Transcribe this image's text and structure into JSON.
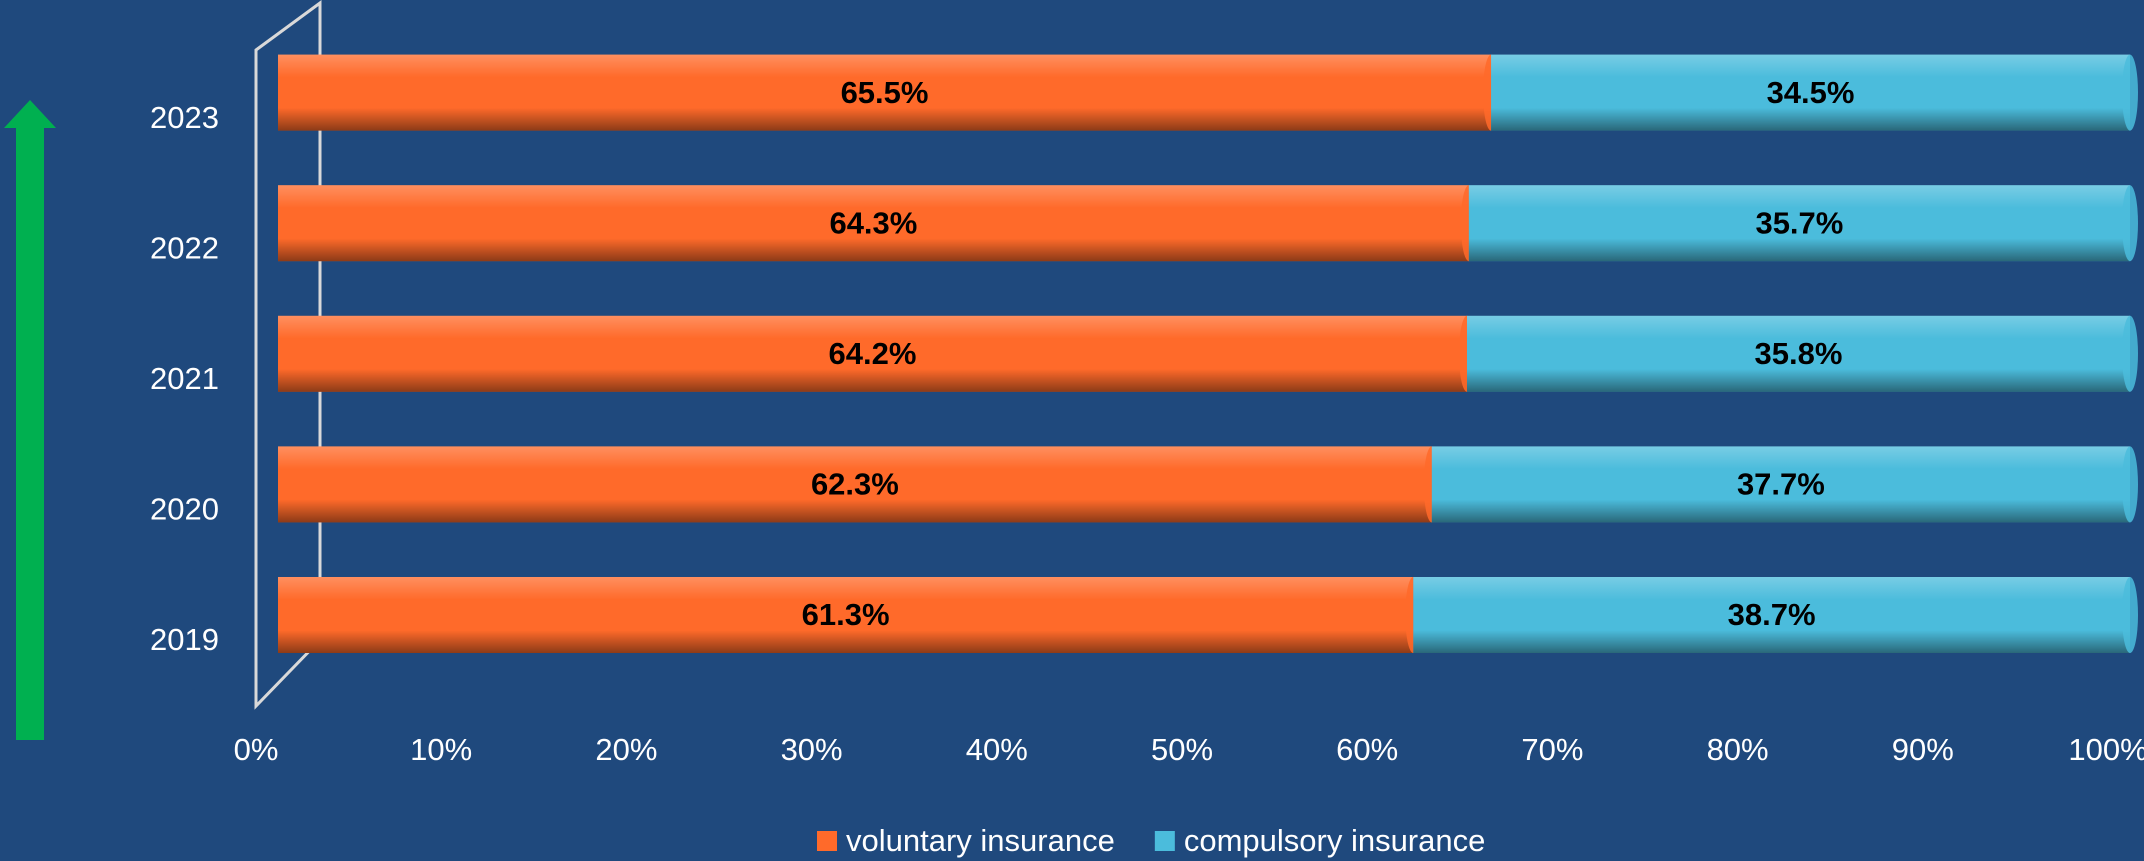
{
  "chart_data": {
    "type": "stacked_bar_horizontal",
    "categories": [
      "2019",
      "2020",
      "2021",
      "2022",
      "2023"
    ],
    "series": [
      {
        "name": "voluntary insurance",
        "color": "#ff6a2a",
        "values": [
          61.3,
          62.3,
          64.2,
          64.3,
          65.5
        ],
        "value_labels": [
          "61.3%",
          "62.3%",
          "64.2%",
          "64.3%",
          "65.5%"
        ]
      },
      {
        "name": "compulsory insurance",
        "color": "#4bbcdc",
        "values": [
          38.7,
          37.7,
          35.8,
          35.7,
          34.5
        ],
        "value_labels": [
          "38.7%",
          "37.7%",
          "35.8%",
          "35.7%",
          "34.5%"
        ]
      }
    ],
    "xlim": [
      0,
      100
    ],
    "xticks": [
      {
        "value": 0,
        "label": "0%"
      },
      {
        "value": 10,
        "label": "10%"
      },
      {
        "value": 20,
        "label": "20%"
      },
      {
        "value": 30,
        "label": "30%"
      },
      {
        "value": 40,
        "label": "40%"
      },
      {
        "value": 50,
        "label": "50%"
      },
      {
        "value": 60,
        "label": "60%"
      },
      {
        "value": 70,
        "label": "70%"
      },
      {
        "value": 80,
        "label": "80%"
      },
      {
        "value": 90,
        "label": "90%"
      },
      {
        "value": 100,
        "label": "100%"
      }
    ],
    "legend": "bottom"
  }
}
